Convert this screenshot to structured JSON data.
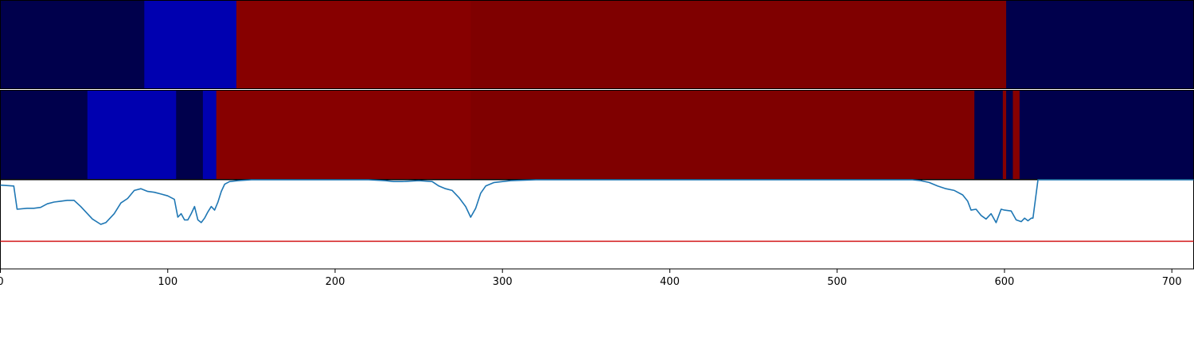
{
  "chart_data": [
    {
      "type": "heatmap",
      "panel": "top-band",
      "segments": [
        {
          "x0": 0,
          "x1": 86,
          "color": "#00004c"
        },
        {
          "x0": 86,
          "x1": 141,
          "color": "#0000b0"
        },
        {
          "x0": 141,
          "x1": 281,
          "color": "#870000"
        },
        {
          "x0": 281,
          "x1": 601,
          "color": "#7f0000"
        },
        {
          "x0": 601,
          "x1": 713,
          "color": "#00004c"
        }
      ]
    },
    {
      "type": "heatmap",
      "panel": "middle-band",
      "segments": [
        {
          "x0": 0,
          "x1": 52,
          "color": "#00004c"
        },
        {
          "x0": 52,
          "x1": 105,
          "color": "#0000b0"
        },
        {
          "x0": 105,
          "x1": 121,
          "color": "#00004c"
        },
        {
          "x0": 121,
          "x1": 129,
          "color": "#0000b0"
        },
        {
          "x0": 129,
          "x1": 281,
          "color": "#870000"
        },
        {
          "x0": 281,
          "x1": 582,
          "color": "#7f0000"
        },
        {
          "x0": 582,
          "x1": 599,
          "color": "#00004c"
        },
        {
          "x0": 599,
          "x1": 601,
          "color": "#870000"
        },
        {
          "x0": 601,
          "x1": 605,
          "color": "#00004c"
        },
        {
          "x0": 605,
          "x1": 609,
          "color": "#870000"
        },
        {
          "x0": 609,
          "x1": 713,
          "color": "#00004c"
        }
      ]
    },
    {
      "type": "line",
      "panel": "bottom",
      "xlim": [
        0,
        713
      ],
      "ylim": [
        0,
        1
      ],
      "xticks": [
        "0",
        "100",
        "200",
        "300",
        "400",
        "500",
        "600",
        "700"
      ],
      "series": [
        {
          "color": "#1f77b4",
          "x": [
            0,
            8,
            10,
            16,
            20,
            24,
            28,
            32,
            36,
            40,
            44,
            48,
            52,
            55,
            60,
            63,
            68,
            72,
            76,
            80,
            84,
            88,
            92,
            96,
            100,
            104,
            106,
            108,
            110,
            112,
            114,
            116,
            118,
            120,
            122,
            124,
            126,
            128,
            130,
            132,
            134,
            137,
            142,
            150,
            160,
            170,
            180,
            190,
            200,
            210,
            220,
            230,
            235,
            240,
            250,
            258,
            262,
            266,
            270,
            274,
            278,
            281,
            284,
            287,
            290,
            295,
            305,
            320,
            340,
            380,
            420,
            460,
            500,
            530,
            545,
            550,
            555,
            560,
            565,
            570,
            575,
            578,
            580,
            583,
            586,
            589,
            592,
            595,
            598,
            600,
            604,
            607,
            610,
            612,
            614,
            616,
            617,
            620,
            640,
            713
          ],
          "y": [
            0.94,
            0.93,
            0.67,
            0.68,
            0.68,
            0.69,
            0.73,
            0.75,
            0.76,
            0.77,
            0.77,
            0.7,
            0.62,
            0.56,
            0.5,
            0.52,
            0.62,
            0.74,
            0.79,
            0.88,
            0.9,
            0.87,
            0.86,
            0.84,
            0.82,
            0.78,
            0.58,
            0.62,
            0.55,
            0.55,
            0.62,
            0.7,
            0.55,
            0.52,
            0.57,
            0.64,
            0.7,
            0.66,
            0.75,
            0.87,
            0.95,
            0.98,
            0.99,
            1.0,
            1.0,
            1.0,
            1.0,
            1.0,
            1.0,
            1.0,
            1.0,
            0.99,
            0.98,
            0.98,
            0.99,
            0.98,
            0.93,
            0.9,
            0.88,
            0.8,
            0.7,
            0.58,
            0.68,
            0.85,
            0.93,
            0.97,
            0.99,
            1.0,
            1.0,
            1.0,
            1.0,
            1.0,
            1.0,
            1.0,
            1.0,
            0.99,
            0.97,
            0.93,
            0.9,
            0.88,
            0.83,
            0.76,
            0.66,
            0.67,
            0.6,
            0.56,
            0.62,
            0.52,
            0.67,
            0.66,
            0.65,
            0.55,
            0.53,
            0.57,
            0.54,
            0.57,
            0.57,
            1.0,
            1.0,
            1.0
          ]
        },
        {
          "color": "#d62728",
          "x": [
            0,
            713
          ],
          "y": [
            0.31,
            0.31
          ]
        }
      ]
    }
  ]
}
